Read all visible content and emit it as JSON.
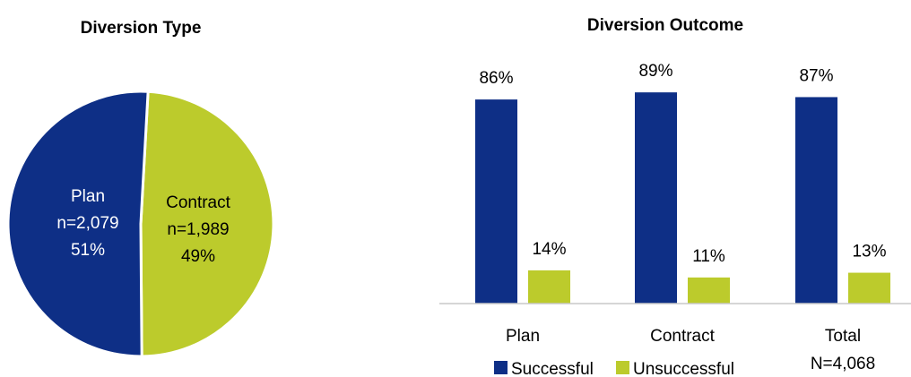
{
  "chart_data": [
    {
      "type": "pie",
      "title": "Diversion Type",
      "slices": [
        {
          "name": "Plan",
          "n_label": "n=2,079",
          "value": 51,
          "value_label": "51%",
          "color": "#0e2f86",
          "text_color": "#ffffff"
        },
        {
          "name": "Contract",
          "n_label": "n=1,989",
          "value": 49,
          "value_label": "49%",
          "color": "#bccb2c",
          "text_color": "#000000"
        }
      ]
    },
    {
      "type": "bar",
      "title": "Diversion Outcome",
      "categories": [
        "Plan",
        "Contract",
        "Total"
      ],
      "category_sublabels": [
        "",
        "",
        "N=4,068"
      ],
      "ylim": [
        0,
        100
      ],
      "grid": false,
      "legend": "bottom",
      "series": [
        {
          "name": "Successful",
          "values": [
            86,
            89,
            87
          ],
          "labels": [
            "86%",
            "89%",
            "87%"
          ],
          "color": "#0e2f86"
        },
        {
          "name": "Unsuccessful",
          "values": [
            14,
            11,
            13
          ],
          "labels": [
            "14%",
            "11%",
            "13%"
          ],
          "color": "#bccb2c"
        }
      ]
    }
  ]
}
